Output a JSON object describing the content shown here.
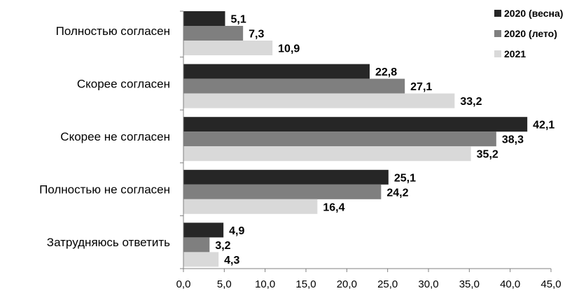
{
  "chart_data": {
    "type": "bar",
    "orientation": "horizontal",
    "categories": [
      "Полностью согласен",
      "Скорее согласен",
      "Скорее не согласен",
      "Полностью не согласен",
      "Затрудняюсь ответить"
    ],
    "series": [
      {
        "name": "2020 (весна)",
        "color": "#262626",
        "values": [
          5.1,
          22.8,
          42.1,
          25.1,
          4.9
        ],
        "labels": [
          "5,1",
          "22,8",
          "42,1",
          "25,1",
          "4,9"
        ]
      },
      {
        "name": "2020 (лето)",
        "color": "#7f7f7f",
        "values": [
          7.3,
          27.1,
          38.3,
          24.2,
          3.2
        ],
        "labels": [
          "7,3",
          "27,1",
          "38,3",
          "24,2",
          "3,2"
        ]
      },
      {
        "name": "2021",
        "color": "#d9d9d9",
        "values": [
          10.9,
          33.2,
          35.2,
          16.4,
          4.3
        ],
        "labels": [
          "10,9",
          "33,2",
          "35,2",
          "16,4",
          "4,3"
        ]
      }
    ],
    "xlim": [
      0,
      45
    ],
    "xticks": [
      0,
      5,
      10,
      15,
      20,
      25,
      30,
      35,
      40,
      45
    ],
    "xtick_labels": [
      "0,0",
      "5,0",
      "10,0",
      "15,0",
      "20,0",
      "25,0",
      "30,0",
      "35,0",
      "40,0",
      "45,0"
    ],
    "title": "",
    "xlabel": "",
    "ylabel": "",
    "grid": false,
    "legend_position": "top-right"
  }
}
